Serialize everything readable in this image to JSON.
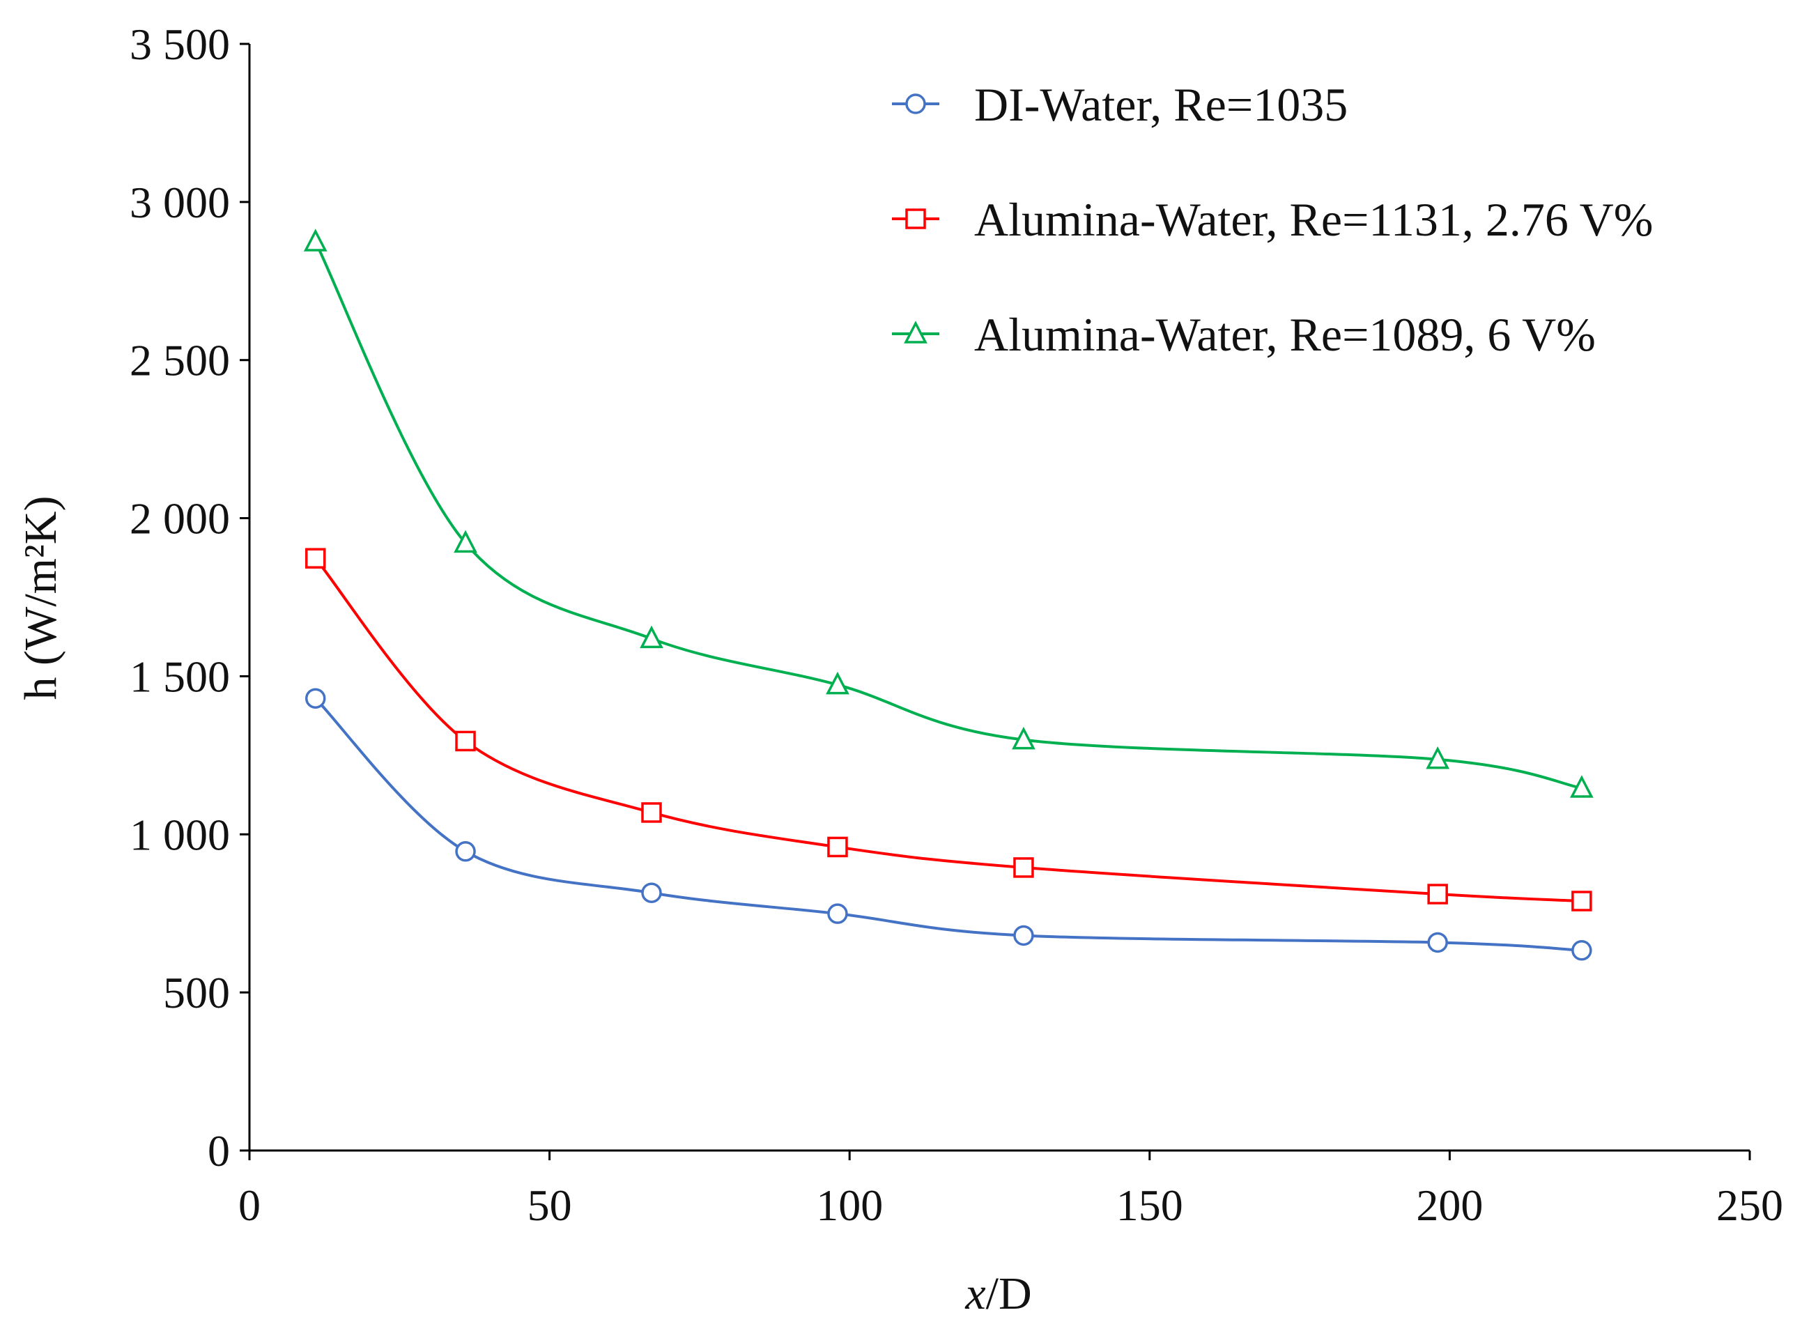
{
  "chart_data": {
    "type": "line",
    "title": "",
    "xlabel_italic": "x",
    "xlabel_rest": "/D",
    "ylabel": "h (W/m²K)",
    "xlim": [
      0,
      250
    ],
    "ylim": [
      0,
      3500
    ],
    "xticks": [
      0,
      50,
      100,
      150,
      200,
      250
    ],
    "xtick_labels": [
      "0",
      "50",
      "100",
      "150",
      "200",
      "250"
    ],
    "yticks": [
      0,
      500,
      1000,
      1500,
      2000,
      2500,
      3000,
      3500
    ],
    "ytick_labels": [
      "0",
      "500",
      "1 000",
      "1 500",
      "2 000",
      "2 500",
      "3 000",
      "3 500"
    ],
    "grid": false,
    "legend_position": "top-right",
    "x": [
      11,
      36,
      67,
      98,
      129,
      198,
      222
    ],
    "series": [
      {
        "name": "DI-Water, Re=1035",
        "color": "#4472c4",
        "marker": "circle",
        "values": [
          1430,
          946,
          815,
          749,
          680,
          658,
          633
        ]
      },
      {
        "name": "Alumina-Water, Re=1131, 2.76 V%",
        "color": "#ff0000",
        "marker": "square",
        "values": [
          1873,
          1295,
          1069,
          960,
          895,
          811,
          789
        ]
      },
      {
        "name": "Alumina-Water, Re=1089, 6 V%",
        "color": "#00b050",
        "marker": "triangle",
        "values": [
          2874,
          1921,
          1619,
          1473,
          1299,
          1237,
          1146
        ]
      }
    ]
  }
}
